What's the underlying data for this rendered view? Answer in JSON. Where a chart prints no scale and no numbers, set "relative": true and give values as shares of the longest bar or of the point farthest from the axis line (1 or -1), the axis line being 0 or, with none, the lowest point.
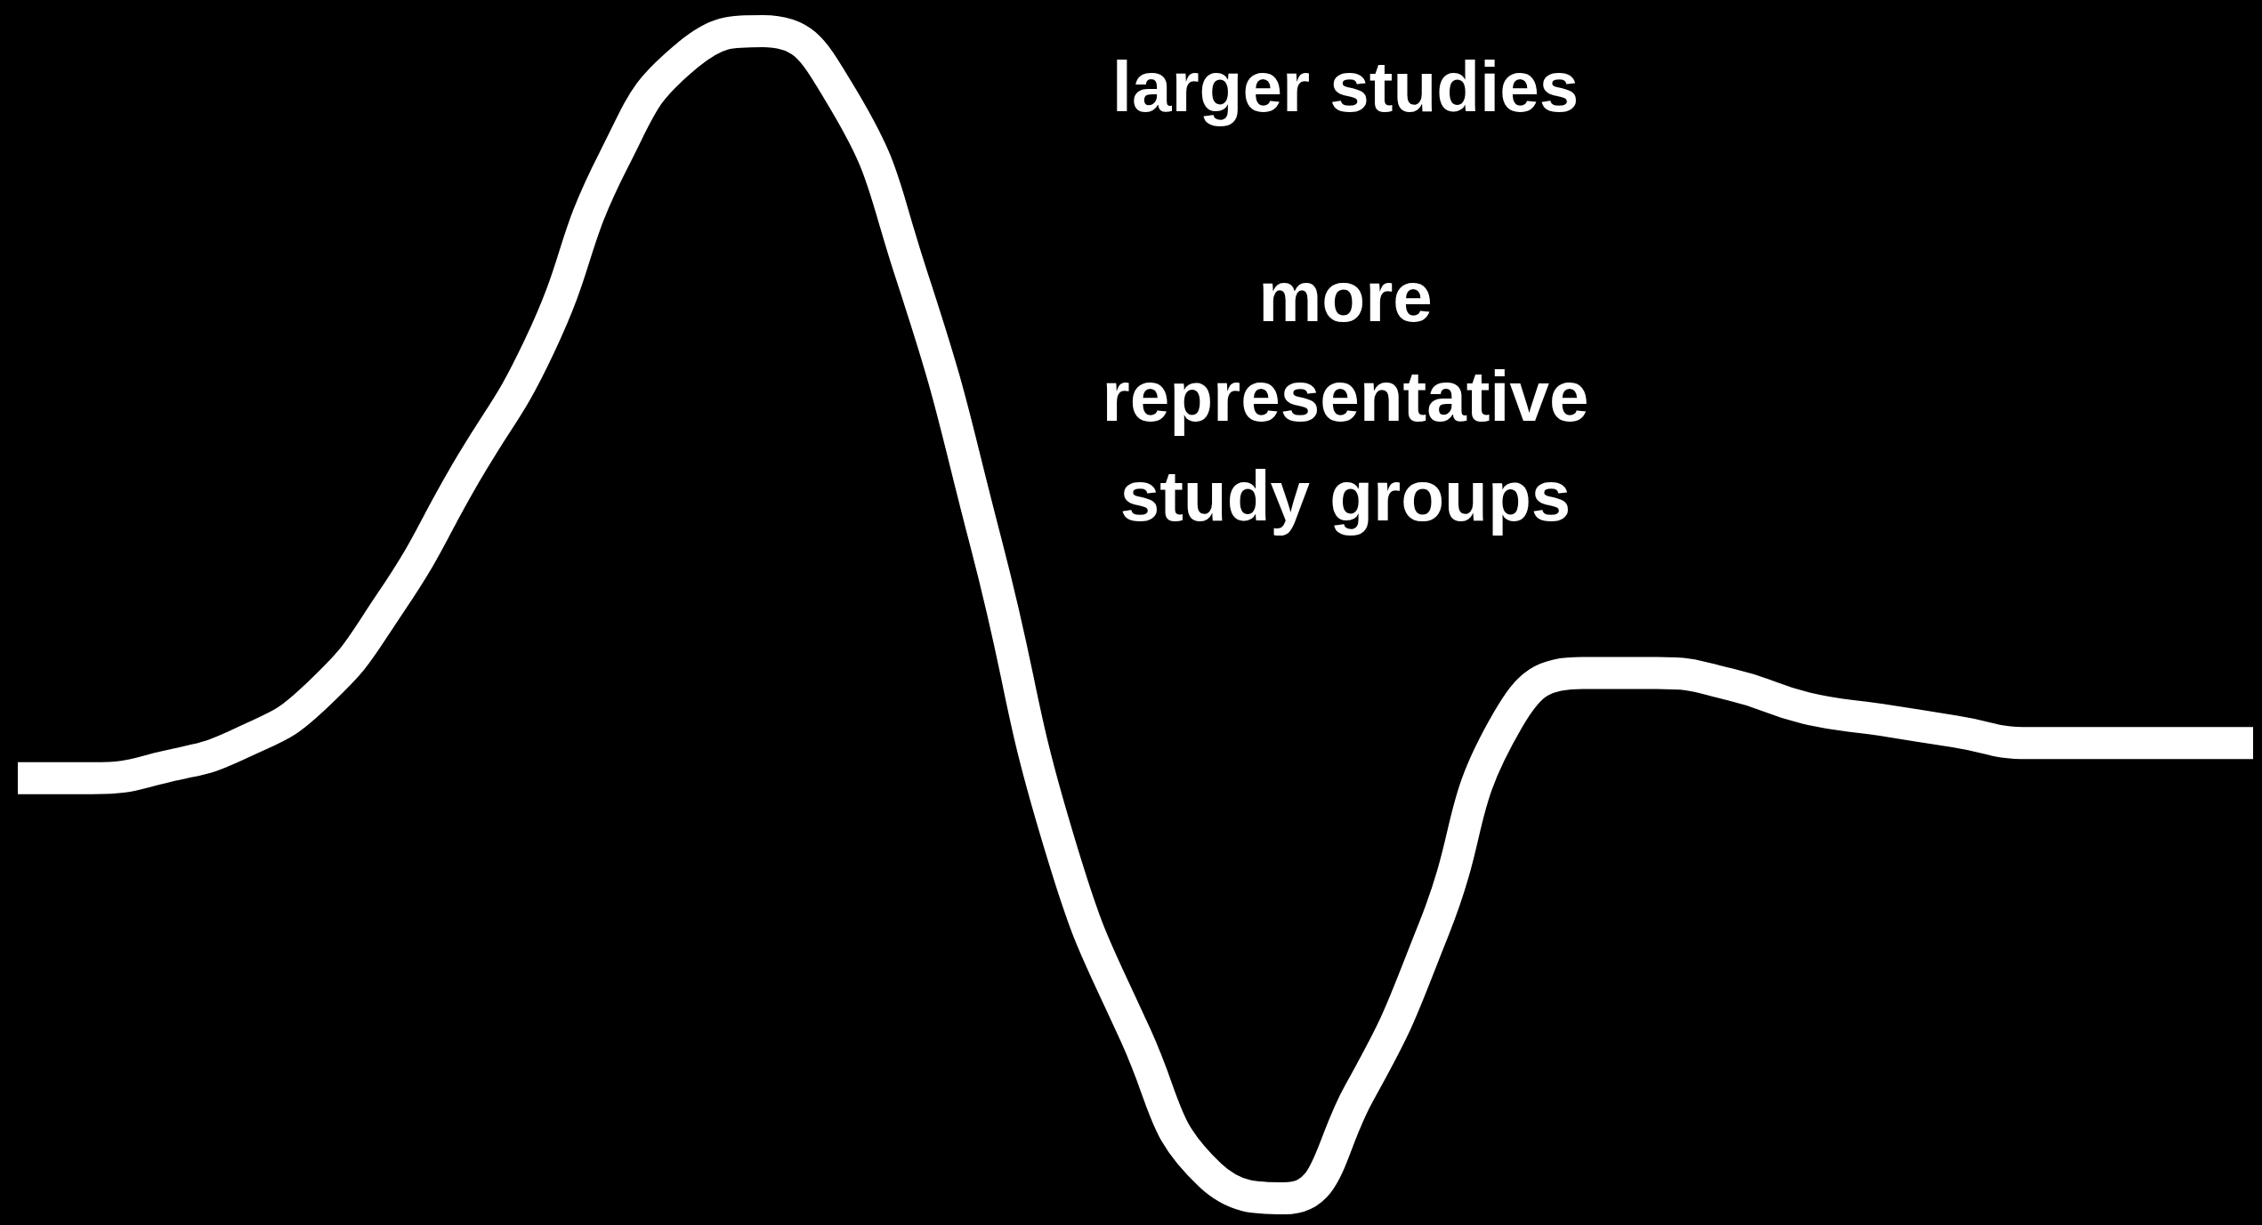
{
  "chart_data": {
    "type": "line",
    "relative": true,
    "color": "#ffffff",
    "marker": "none",
    "categories": [
      null,
      null,
      null,
      null,
      null,
      null,
      null,
      null,
      null,
      null,
      null,
      null,
      null,
      null,
      null,
      null,
      null,
      null,
      null,
      null,
      null,
      null,
      null,
      null,
      null,
      null,
      null,
      null,
      null,
      null,
      null
    ],
    "values": [
      0.36,
      0.36,
      0.37,
      0.39,
      0.43,
      0.51,
      0.62,
      0.73,
      0.89,
      0.98,
      1,
      0.95,
      0.79,
      0.56,
      0.3,
      0.14,
      0.02,
      0,
      0.09,
      0.23,
      0.41,
      0.45,
      0.45,
      0.44,
      0.42,
      0.41,
      0.4,
      0.39,
      0.39,
      0.39,
      0.39
    ],
    "annotations": [
      "larger studies",
      "more\nrepresentative\nstudy groups"
    ]
  }
}
